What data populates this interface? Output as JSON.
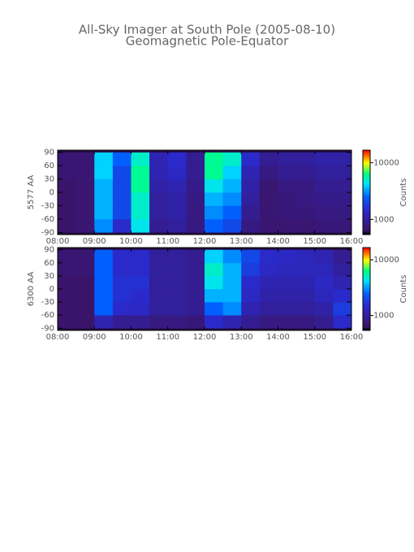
{
  "title": "All-Sky Imager at South Pole (2005-08-10)",
  "subtitle": "Geomagnetic Pole-Equator",
  "chart_data": [
    {
      "type": "heatmap",
      "ylabel": "5577 AA",
      "xlim": [
        8,
        16
      ],
      "xticks": [
        {
          "value": 8,
          "label": "08:00"
        },
        {
          "value": 9,
          "label": "09:00"
        },
        {
          "value": 10,
          "label": "10:00"
        },
        {
          "value": 11,
          "label": "11:00"
        },
        {
          "value": 12,
          "label": "12:00"
        },
        {
          "value": 13,
          "label": "13:00"
        },
        {
          "value": 14,
          "label": "14:00"
        },
        {
          "value": 15,
          "label": "15:00"
        },
        {
          "value": 16,
          "label": "16:00"
        }
      ],
      "ylim": [
        -95,
        95
      ],
      "yticks": [
        -90,
        -60,
        -30,
        0,
        30,
        60,
        90
      ],
      "xbins": [
        8,
        8.5,
        9,
        9.5,
        10,
        10.5,
        11,
        11.5,
        12,
        12.5,
        13,
        13.5,
        14,
        14.5,
        15,
        15.5,
        16
      ],
      "ybins": [
        -90,
        -60,
        -30,
        0,
        30,
        60,
        90
      ],
      "z": [
        [
          650,
          700,
          3000,
          1500,
          4500,
          900,
          1000,
          800,
          2500,
          2000,
          800,
          700,
          700,
          700,
          750,
          750
        ],
        [
          650,
          700,
          3500,
          2000,
          5000,
          1000,
          1100,
          800,
          3000,
          2500,
          900,
          700,
          750,
          750,
          800,
          800
        ],
        [
          650,
          700,
          3500,
          2000,
          5000,
          1000,
          1100,
          800,
          3500,
          3000,
          1000,
          700,
          750,
          800,
          850,
          850
        ],
        [
          650,
          700,
          3500,
          2000,
          6000,
          1100,
          1200,
          850,
          4500,
          3500,
          1100,
          700,
          800,
          800,
          900,
          900
        ],
        [
          700,
          700,
          4000,
          2000,
          6000,
          1200,
          1400,
          900,
          6000,
          4000,
          1200,
          800,
          900,
          900,
          1000,
          1000
        ],
        [
          700,
          700,
          4000,
          2500,
          5000,
          1200,
          1500,
          900,
          6000,
          5000,
          1500,
          900,
          1000,
          1000,
          1100,
          1100
        ]
      ],
      "colorbar": {
        "label": "Counts",
        "lim": [
          540,
          16600
        ],
        "ticks": [
          1000,
          10000
        ],
        "log": true
      }
    },
    {
      "type": "heatmap",
      "ylabel": "6300 AA",
      "xlim": [
        8,
        16
      ],
      "xticks": [
        {
          "value": 8,
          "label": "08:00"
        },
        {
          "value": 9,
          "label": "09:00"
        },
        {
          "value": 10,
          "label": "10:00"
        },
        {
          "value": 11,
          "label": "11:00"
        },
        {
          "value": 12,
          "label": "12:00"
        },
        {
          "value": 13,
          "label": "13:00"
        },
        {
          "value": 14,
          "label": "14:00"
        },
        {
          "value": 15,
          "label": "15:00"
        },
        {
          "value": 16,
          "label": "16:00"
        }
      ],
      "ylim": [
        -95,
        95
      ],
      "yticks": [
        -90,
        -60,
        -30,
        0,
        30,
        60,
        90
      ],
      "xbins": [
        8,
        8.5,
        9,
        9.5,
        10,
        10.5,
        11,
        11.5,
        12,
        12.5,
        13,
        13.5,
        14,
        14.5,
        15,
        15.5,
        16
      ],
      "ybins": [
        -90,
        -60,
        -30,
        0,
        30,
        60,
        90
      ],
      "z": [
        [
          650,
          650,
          1200,
          900,
          900,
          800,
          800,
          750,
          1500,
          1200,
          900,
          800,
          800,
          800,
          900,
          1500
        ],
        [
          650,
          650,
          2500,
          1500,
          1400,
          1000,
          1000,
          900,
          2500,
          3000,
          1200,
          1000,
          1000,
          1000,
          1100,
          1800
        ],
        [
          650,
          650,
          2500,
          1600,
          1500,
          1000,
          1000,
          900,
          3500,
          3500,
          1400,
          1100,
          1100,
          1100,
          1300,
          1500
        ],
        [
          650,
          650,
          2500,
          1600,
          1600,
          1000,
          1000,
          900,
          4500,
          3500,
          1500,
          1200,
          1200,
          1200,
          1400,
          1200
        ],
        [
          700,
          700,
          2500,
          1500,
          1500,
          1000,
          1000,
          900,
          5000,
          3500,
          1800,
          1400,
          1300,
          1300,
          1300,
          1000
        ],
        [
          700,
          700,
          2500,
          1500,
          1500,
          1000,
          1000,
          900,
          4000,
          3000,
          2000,
          1500,
          1400,
          1300,
          1200,
          900
        ]
      ],
      "colorbar": {
        "label": "Counts",
        "lim": [
          540,
          16600
        ],
        "ticks": [
          1000,
          10000
        ],
        "log": true
      }
    }
  ],
  "colormap": [
    {
      "at": 0,
      "color": "#000000"
    },
    {
      "at": 0.05,
      "color": "#3a1468"
    },
    {
      "at": 0.3,
      "color": "#2a2acc"
    },
    {
      "at": 0.45,
      "color": "#0060ff"
    },
    {
      "at": 0.6,
      "color": "#00e0ff"
    },
    {
      "at": 0.72,
      "color": "#00ff80"
    },
    {
      "at": 0.85,
      "color": "#ffff00"
    },
    {
      "at": 1,
      "color": "#ff0000"
    }
  ]
}
